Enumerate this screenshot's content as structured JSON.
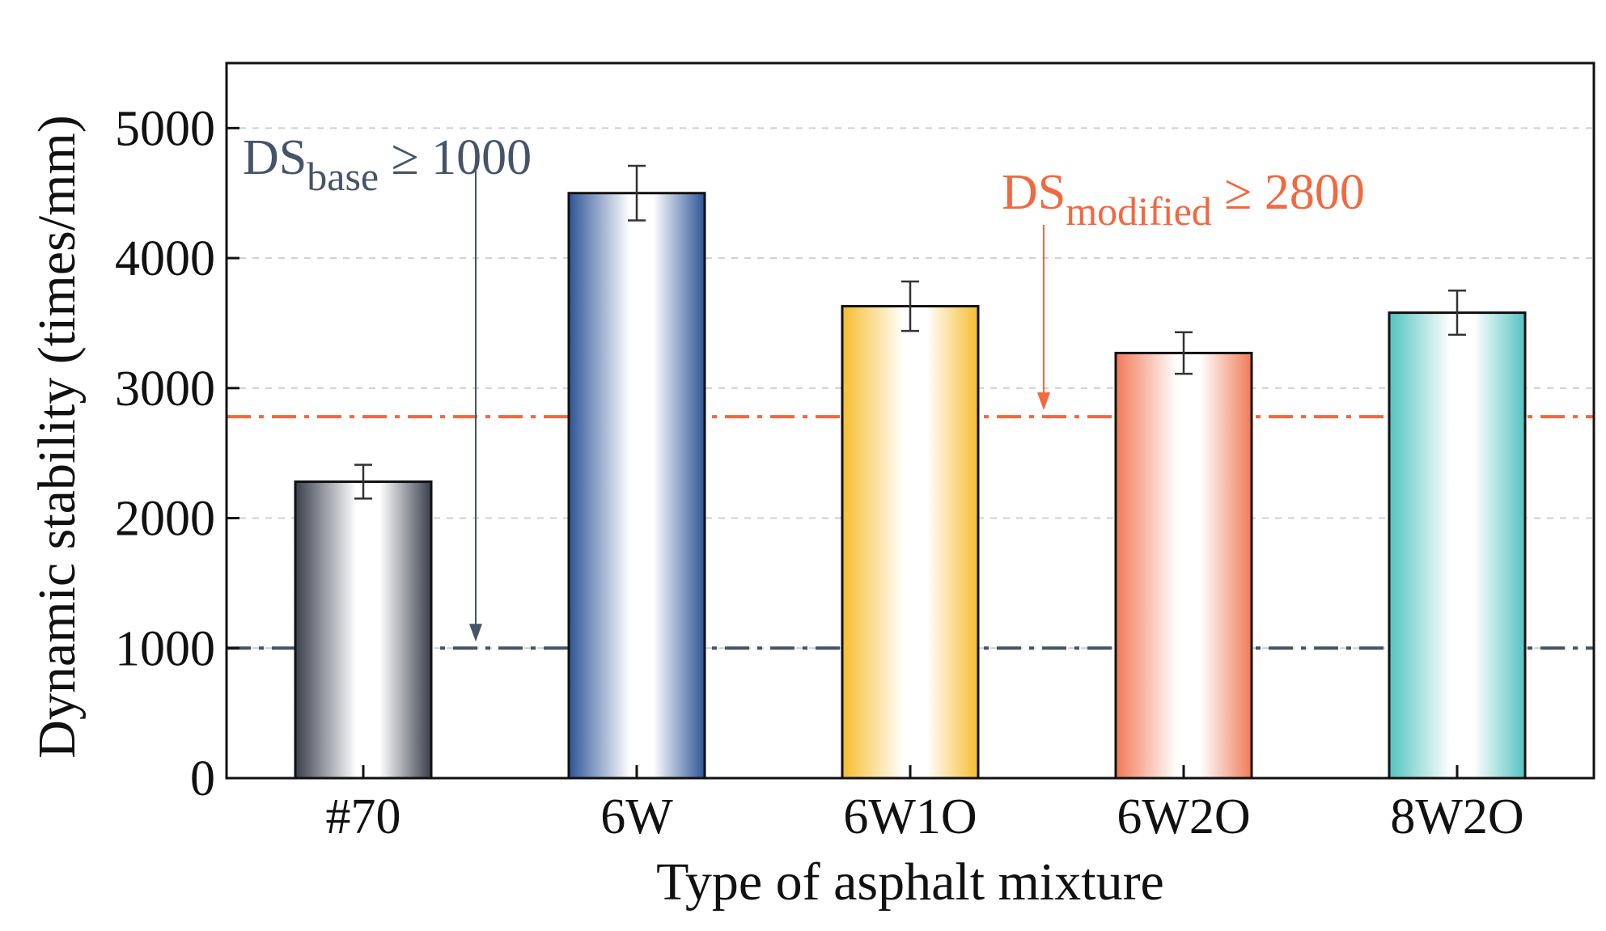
{
  "chart_data": {
    "type": "bar",
    "xlabel": "Type of asphalt mixture",
    "ylabel": "Dynamic stability (times/mm)",
    "ylim": [
      0,
      5500
    ],
    "yticks": [
      0,
      1000,
      2000,
      3000,
      4000,
      5000
    ],
    "grid": "horizontal dashed",
    "categories": [
      "#70",
      "6W",
      "6W1O",
      "6W2O",
      "8W2O"
    ],
    "values": [
      2280,
      4500,
      3630,
      3270,
      3580
    ],
    "errors": [
      130,
      210,
      190,
      160,
      170
    ],
    "colors": [
      "#3a3f4c",
      "#2e5597",
      "#f5bd2e",
      "#f07a58",
      "#52c4c0"
    ],
    "reference_lines": [
      {
        "value": 1000,
        "color": "#46546a",
        "label_main": "DS",
        "label_sub": "base",
        "label_rest": " ≥ 1000"
      },
      {
        "value": 2780,
        "color": "#f2683f",
        "label_main": "DS",
        "label_sub": "modified",
        "label_rest": " ≥ 2800"
      }
    ]
  }
}
